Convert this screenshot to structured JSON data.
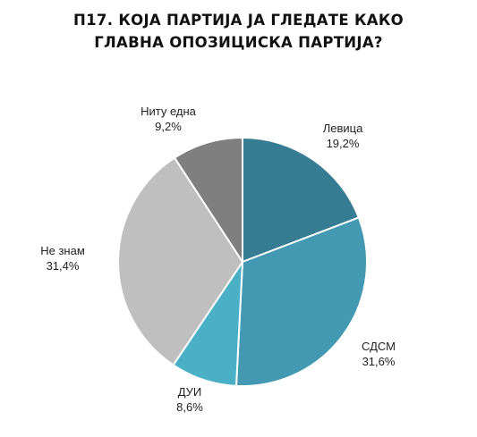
{
  "chart_data": {
    "type": "pie",
    "title_lines": [
      "П17. КОЈА ПАРТИЈА ЈА ГЛЕДАТЕ КАКО",
      "ГЛАВНА ОПОЗИЦИСКА ПАРТИЈА?"
    ],
    "slices": [
      {
        "label": "Левица",
        "value": 19.2,
        "value_label": "19,2%",
        "color": "#367d93"
      },
      {
        "label": "СДСМ",
        "value": 31.6,
        "value_label": "31,6%",
        "color": "#4399b1"
      },
      {
        "label": "ДУИ",
        "value": 8.6,
        "value_label": "8,6%",
        "color": "#4ab0c6"
      },
      {
        "label": "Не знам",
        "value": 31.4,
        "value_label": "31,4%",
        "color": "#bfbfbf"
      },
      {
        "label": "Ниту една",
        "value": 9.2,
        "value_label": "9,2%",
        "color": "#7f7f7f"
      }
    ]
  }
}
